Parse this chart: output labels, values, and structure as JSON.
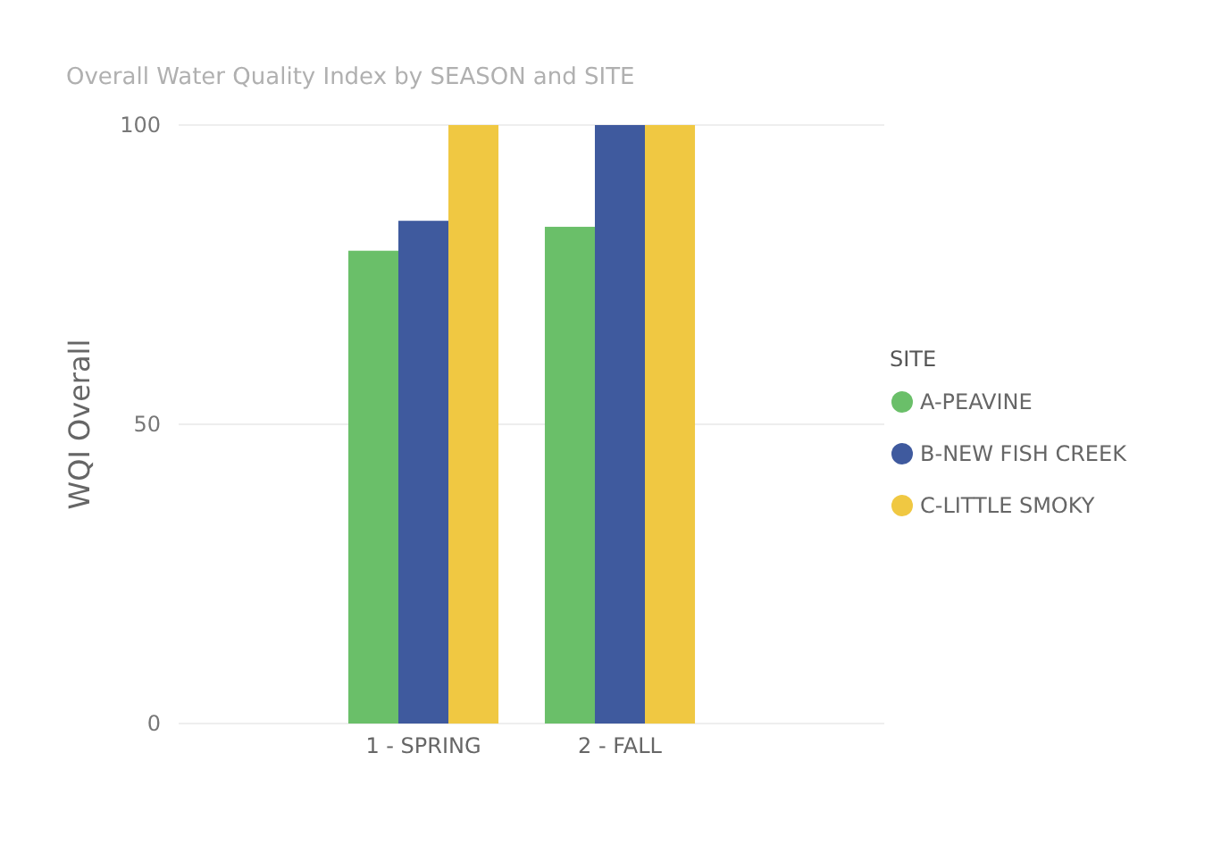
{
  "chart_data": {
    "type": "bar",
    "title": "Overall Water Quality Index by SEASON and SITE",
    "ylabel": "WQI Overall",
    "legend_title": "SITE",
    "categories": [
      "1 - SPRING",
      "2 - FALL"
    ],
    "series": [
      {
        "name": "A-PEAVINE",
        "color": "#6abf69",
        "values": [
          79,
          83
        ]
      },
      {
        "name": "B-NEW FISH CREEK",
        "color": "#3f5a9e",
        "values": [
          84,
          100
        ]
      },
      {
        "name": "C-LITTLE SMOKY",
        "color": "#f0c842",
        "values": [
          100,
          100
        ]
      }
    ],
    "ylim": [
      0,
      100
    ],
    "yticks": [
      0,
      50,
      100
    ],
    "grid": "y",
    "legend": "right"
  }
}
